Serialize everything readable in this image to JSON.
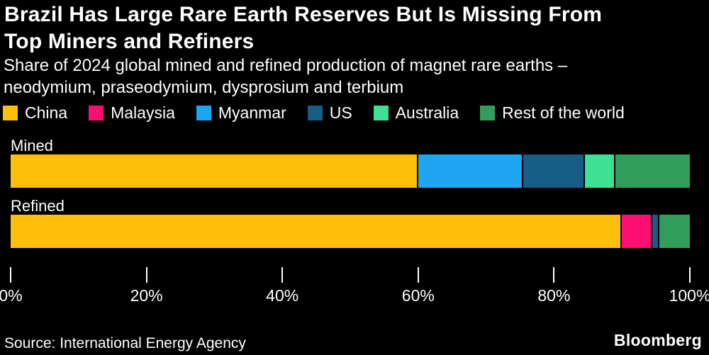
{
  "header": {
    "title_line1": "Brazil Has Large Rare Earth Reserves But Is Missing From",
    "title_line2": "Top Miners and Refiners",
    "subtitle_line1": "Share of 2024 global mined and refined production of magnet rare earths –",
    "subtitle_line2": "neodymium, praseodymium, dysprosium and terbium"
  },
  "legend": [
    {
      "label": "China",
      "color": "#FFBE0A"
    },
    {
      "label": "Malaysia",
      "color": "#FC0F70"
    },
    {
      "label": "Myanmar",
      "color": "#1FA6F2"
    },
    {
      "label": "US",
      "color": "#175E87"
    },
    {
      "label": "Australia",
      "color": "#3EE094"
    },
    {
      "label": "Rest of the world",
      "color": "#329E5C"
    }
  ],
  "chart_data": {
    "type": "bar",
    "orientation": "horizontal",
    "stacked": true,
    "title": "Brazil Has Large Rare Earth Reserves But Is Missing From Top Miners and Refiners",
    "subtitle": "Share of 2024 global mined and refined production of magnet rare earths – neodymium, praseodymium, dysprosium and terbium",
    "categories": [
      "Mined",
      "Refined"
    ],
    "series": [
      {
        "name": "China",
        "color": "#FFBE0A",
        "values": [
          60,
          90
        ]
      },
      {
        "name": "Malaysia",
        "color": "#FC0F70",
        "values": [
          0,
          4.5
        ]
      },
      {
        "name": "Myanmar",
        "color": "#1FA6F2",
        "values": [
          15.5,
          0
        ]
      },
      {
        "name": "US",
        "color": "#175E87",
        "values": [
          9,
          1
        ]
      },
      {
        "name": "Australia",
        "color": "#3EE094",
        "values": [
          4.5,
          0
        ]
      },
      {
        "name": "Rest of the world",
        "color": "#329E5C",
        "values": [
          11,
          4.5
        ]
      }
    ],
    "x_ticks": [
      "0%",
      "20%",
      "40%",
      "60%",
      "80%",
      "100%"
    ],
    "xlim": [
      0,
      100
    ],
    "unit": "%",
    "grid": false,
    "legend_position": "top"
  },
  "footer": {
    "source": "Source: International Energy Agency",
    "logo": "Bloomberg"
  }
}
